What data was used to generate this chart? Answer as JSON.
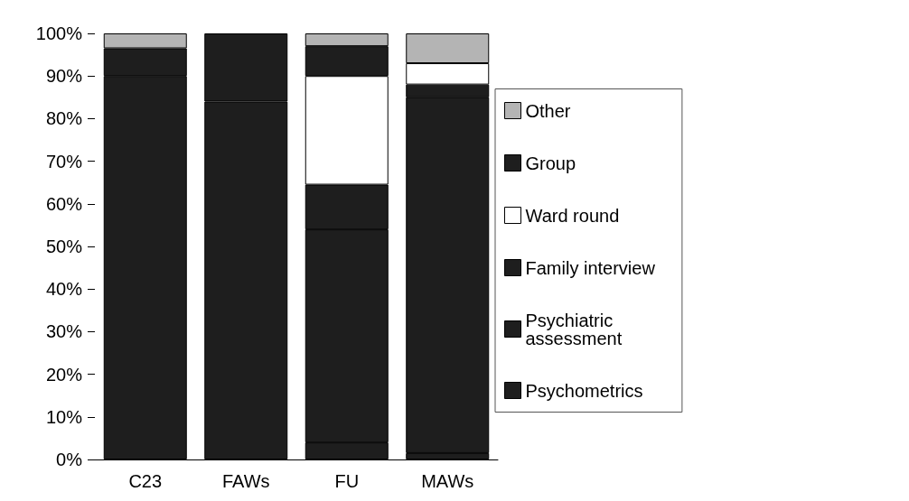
{
  "chart_data": {
    "type": "bar",
    "stacked": true,
    "categories": [
      "C23",
      "FAWs",
      "FU",
      "MAWs"
    ],
    "ylim": [
      0,
      100
    ],
    "yticks": [
      {
        "value": 0,
        "label": "0%"
      },
      {
        "value": 10,
        "label": "10%"
      },
      {
        "value": 20,
        "label": "20%"
      },
      {
        "value": 30,
        "label": "30%"
      },
      {
        "value": 40,
        "label": "40%"
      },
      {
        "value": 50,
        "label": "50%"
      },
      {
        "value": 60,
        "label": "60%"
      },
      {
        "value": 70,
        "label": "70%"
      },
      {
        "value": 80,
        "label": "80%"
      },
      {
        "value": 90,
        "label": "90%"
      },
      {
        "value": 100,
        "label": "100%"
      }
    ],
    "legend": "right",
    "grid": false,
    "series": [
      {
        "name": "Psychometrics",
        "color": "#1e1e1e",
        "values": [
          0,
          0,
          4,
          1.5
        ]
      },
      {
        "name": "Psychiatric assessment",
        "color": "#1e1e1e",
        "values": [
          90,
          84,
          50,
          83.5
        ]
      },
      {
        "name": "Family interview",
        "color": "#1e1e1e",
        "values": [
          0,
          0,
          10.5,
          3
        ]
      },
      {
        "name": "Ward round",
        "color": "#ffffff",
        "values": [
          0,
          0,
          25.5,
          5
        ]
      },
      {
        "name": "Group",
        "color": "#1e1e1e",
        "values": [
          6.5,
          16,
          7,
          0
        ]
      },
      {
        "name": "Other",
        "color": "#b4b4b4",
        "values": [
          3.5,
          0,
          3,
          7
        ]
      }
    ]
  }
}
